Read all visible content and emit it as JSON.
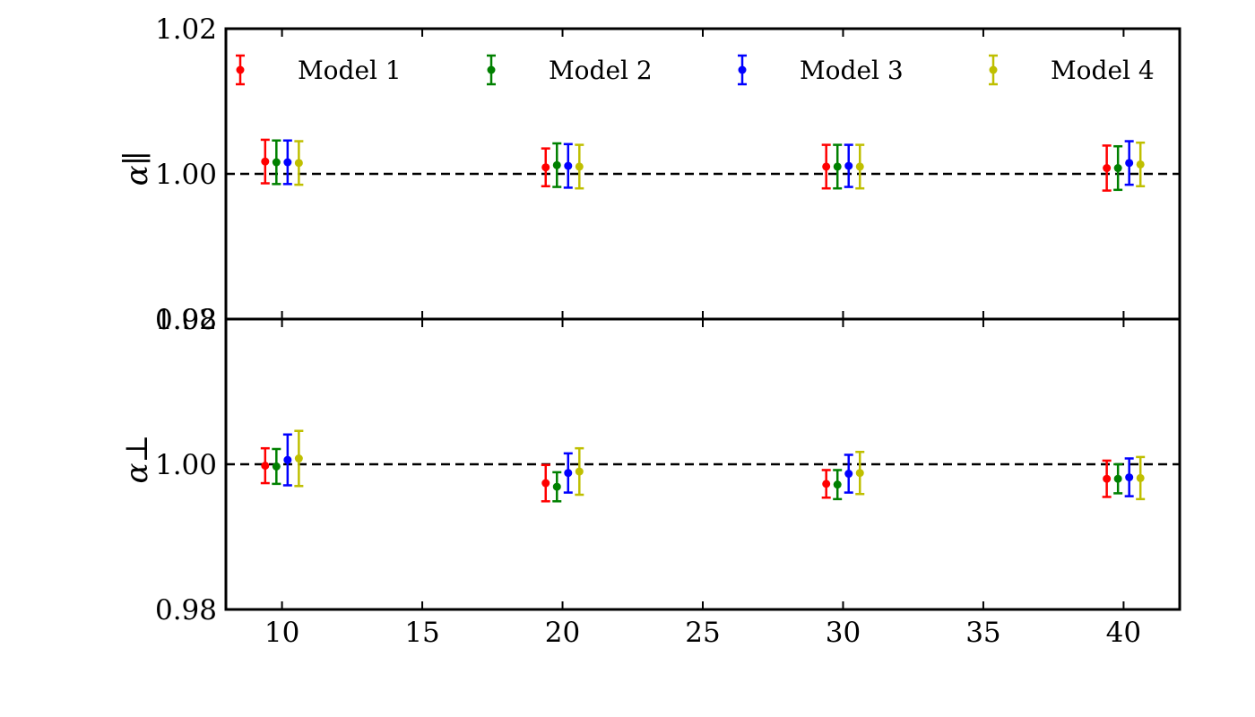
{
  "chart_data": [
    {
      "type": "scatter",
      "subplot": "top",
      "ylabel": "α∥",
      "ylim": [
        0.98,
        1.02
      ],
      "y_ticks": [
        "0.98",
        "1.00",
        "1.02"
      ],
      "reference_line": {
        "y": 1.0,
        "style": "dashed",
        "color": "#000000"
      },
      "series": [
        {
          "name": "Model 1",
          "color": "#ff0000",
          "x": [
            9.4,
            19.4,
            29.4,
            39.4
          ],
          "y": [
            1.0017,
            1.0009,
            1.001,
            1.0008
          ],
          "yerr": [
            0.003,
            0.0026,
            0.003,
            0.0031
          ]
        },
        {
          "name": "Model 2",
          "color": "#008000",
          "x": [
            9.8,
            19.8,
            29.8,
            39.8
          ],
          "y": [
            1.0016,
            1.0012,
            1.001,
            1.0008
          ],
          "yerr": [
            0.003,
            0.003,
            0.003,
            0.003
          ]
        },
        {
          "name": "Model 3",
          "color": "#0000ff",
          "x": [
            10.2,
            20.2,
            30.2,
            40.2
          ],
          "y": [
            1.0016,
            1.0011,
            1.0011,
            1.0015
          ],
          "yerr": [
            0.003,
            0.003,
            0.0029,
            0.003
          ]
        },
        {
          "name": "Model 4",
          "color": "#bfbf00",
          "x": [
            10.6,
            20.6,
            30.6,
            40.6
          ],
          "y": [
            1.0015,
            1.001,
            1.001,
            1.0013
          ],
          "yerr": [
            0.003,
            0.003,
            0.003,
            0.003
          ]
        }
      ]
    },
    {
      "type": "scatter",
      "subplot": "bottom",
      "ylabel": "α⊥",
      "ylim": [
        0.98,
        1.02
      ],
      "y_ticks": [
        "0.98",
        "1.00",
        "1.02"
      ],
      "reference_line": {
        "y": 1.0,
        "style": "dashed",
        "color": "#000000"
      },
      "series": [
        {
          "name": "Model 1",
          "color": "#ff0000",
          "x": [
            9.4,
            19.4,
            29.4,
            39.4
          ],
          "y": [
            0.9998,
            0.9974,
            0.9973,
            0.998
          ],
          "yerr": [
            0.0024,
            0.0025,
            0.0019,
            0.0025
          ]
        },
        {
          "name": "Model 2",
          "color": "#008000",
          "x": [
            9.8,
            19.8,
            29.8,
            39.8
          ],
          "y": [
            0.9997,
            0.9969,
            0.9972,
            0.998
          ],
          "yerr": [
            0.0024,
            0.002,
            0.002,
            0.002
          ]
        },
        {
          "name": "Model 3",
          "color": "#0000ff",
          "x": [
            10.2,
            20.2,
            30.2,
            40.2
          ],
          "y": [
            1.0006,
            0.9988,
            0.9987,
            0.9982
          ],
          "yerr": [
            0.0035,
            0.0027,
            0.0026,
            0.0026
          ]
        },
        {
          "name": "Model 4",
          "color": "#bfbf00",
          "x": [
            10.6,
            20.6,
            30.6,
            40.6
          ],
          "y": [
            1.0008,
            0.999,
            0.9988,
            0.9981
          ],
          "yerr": [
            0.0038,
            0.0032,
            0.0029,
            0.0029
          ]
        }
      ]
    }
  ],
  "x_axis": {
    "xlim": [
      8,
      42
    ],
    "ticks": [
      10,
      15,
      20,
      25,
      30,
      35,
      40
    ],
    "tick_labels": [
      "10",
      "15",
      "20",
      "25",
      "30",
      "35",
      "40"
    ]
  },
  "legend": {
    "placement": "top",
    "entries": [
      "Model 1",
      "Model 2",
      "Model 3",
      "Model 4"
    ]
  }
}
